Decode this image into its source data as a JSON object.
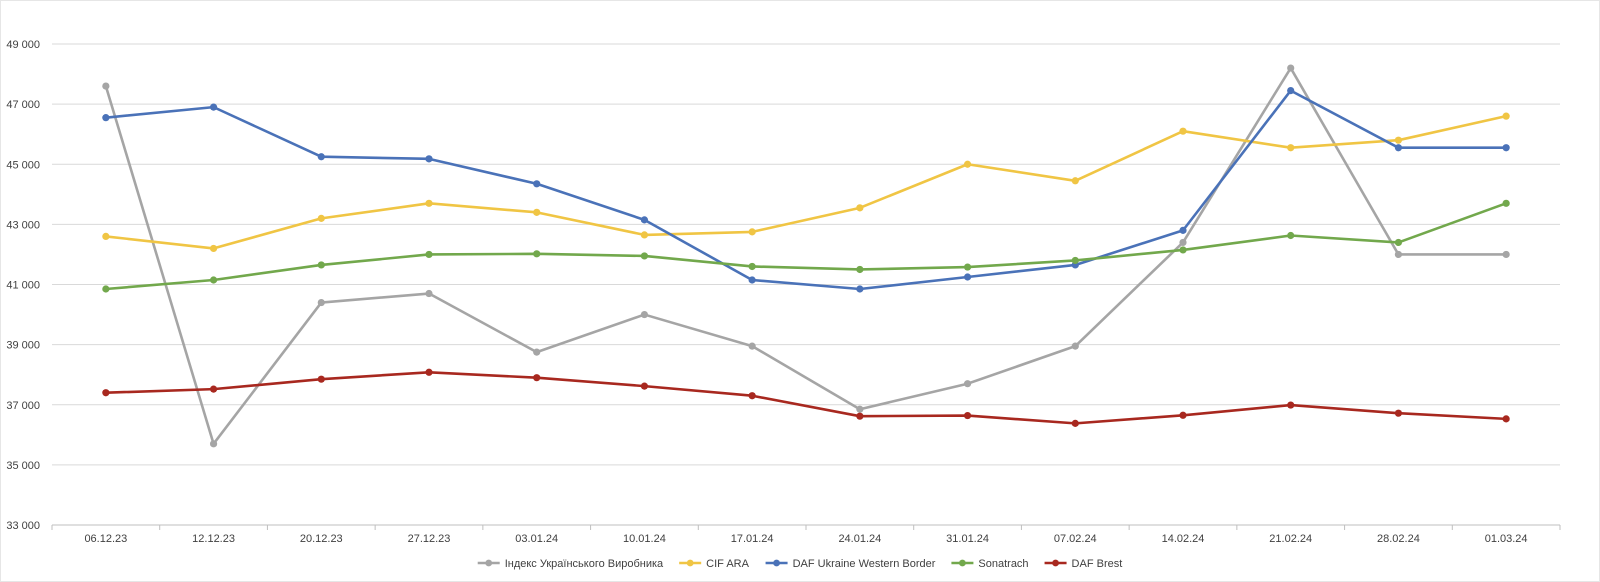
{
  "chart_data": {
    "type": "line",
    "title": "",
    "xlabel": "",
    "ylabel": "",
    "ylim": [
      33000,
      49000
    ],
    "yticks": [
      33000,
      35000,
      37000,
      39000,
      41000,
      43000,
      45000,
      47000,
      49000
    ],
    "ytick_labels": [
      "33 000",
      "35 000",
      "37 000",
      "39 000",
      "41 000",
      "43 000",
      "45 000",
      "47 000",
      "49 000"
    ],
    "grid": true,
    "legend_position": "bottom",
    "categories": [
      "06.12.23",
      "12.12.23",
      "20.12.23",
      "27.12.23",
      "03.01.24",
      "10.01.24",
      "17.01.24",
      "24.01.24",
      "31.01.24",
      "07.02.24",
      "14.02.24",
      "21.02.24",
      "28.02.24",
      "01.03.24"
    ],
    "series": [
      {
        "name": "Індекс Українського Виробника",
        "color": "#a5a5a5",
        "values": [
          47600,
          35700,
          40400,
          40700,
          38750,
          40000,
          38950,
          36850,
          37700,
          38950,
          42400,
          48200,
          42000,
          42000
        ]
      },
      {
        "name": "CIF ARA",
        "color": "#f0c544",
        "values": [
          42600,
          42200,
          43200,
          43700,
          43400,
          42650,
          42750,
          43550,
          45000,
          44450,
          46100,
          45550,
          45800,
          46600
        ]
      },
      {
        "name": "DAF Ukraine Western Border",
        "color": "#4a72b8",
        "values": [
          46550,
          46900,
          45250,
          45180,
          44350,
          43150,
          41150,
          40850,
          41250,
          41650,
          42800,
          47450,
          45550,
          45550
        ]
      },
      {
        "name": "Sonatrach",
        "color": "#72a84c",
        "values": [
          40850,
          41150,
          41650,
          42000,
          42020,
          41950,
          41600,
          41500,
          41580,
          41800,
          42150,
          42630,
          42400,
          43700
        ]
      },
      {
        "name": "DAF Brest",
        "color": "#a8281f",
        "values": [
          37400,
          37520,
          37850,
          38080,
          37900,
          37620,
          37300,
          36620,
          36640,
          36380,
          36650,
          36990,
          36720,
          36530
        ]
      }
    ]
  }
}
